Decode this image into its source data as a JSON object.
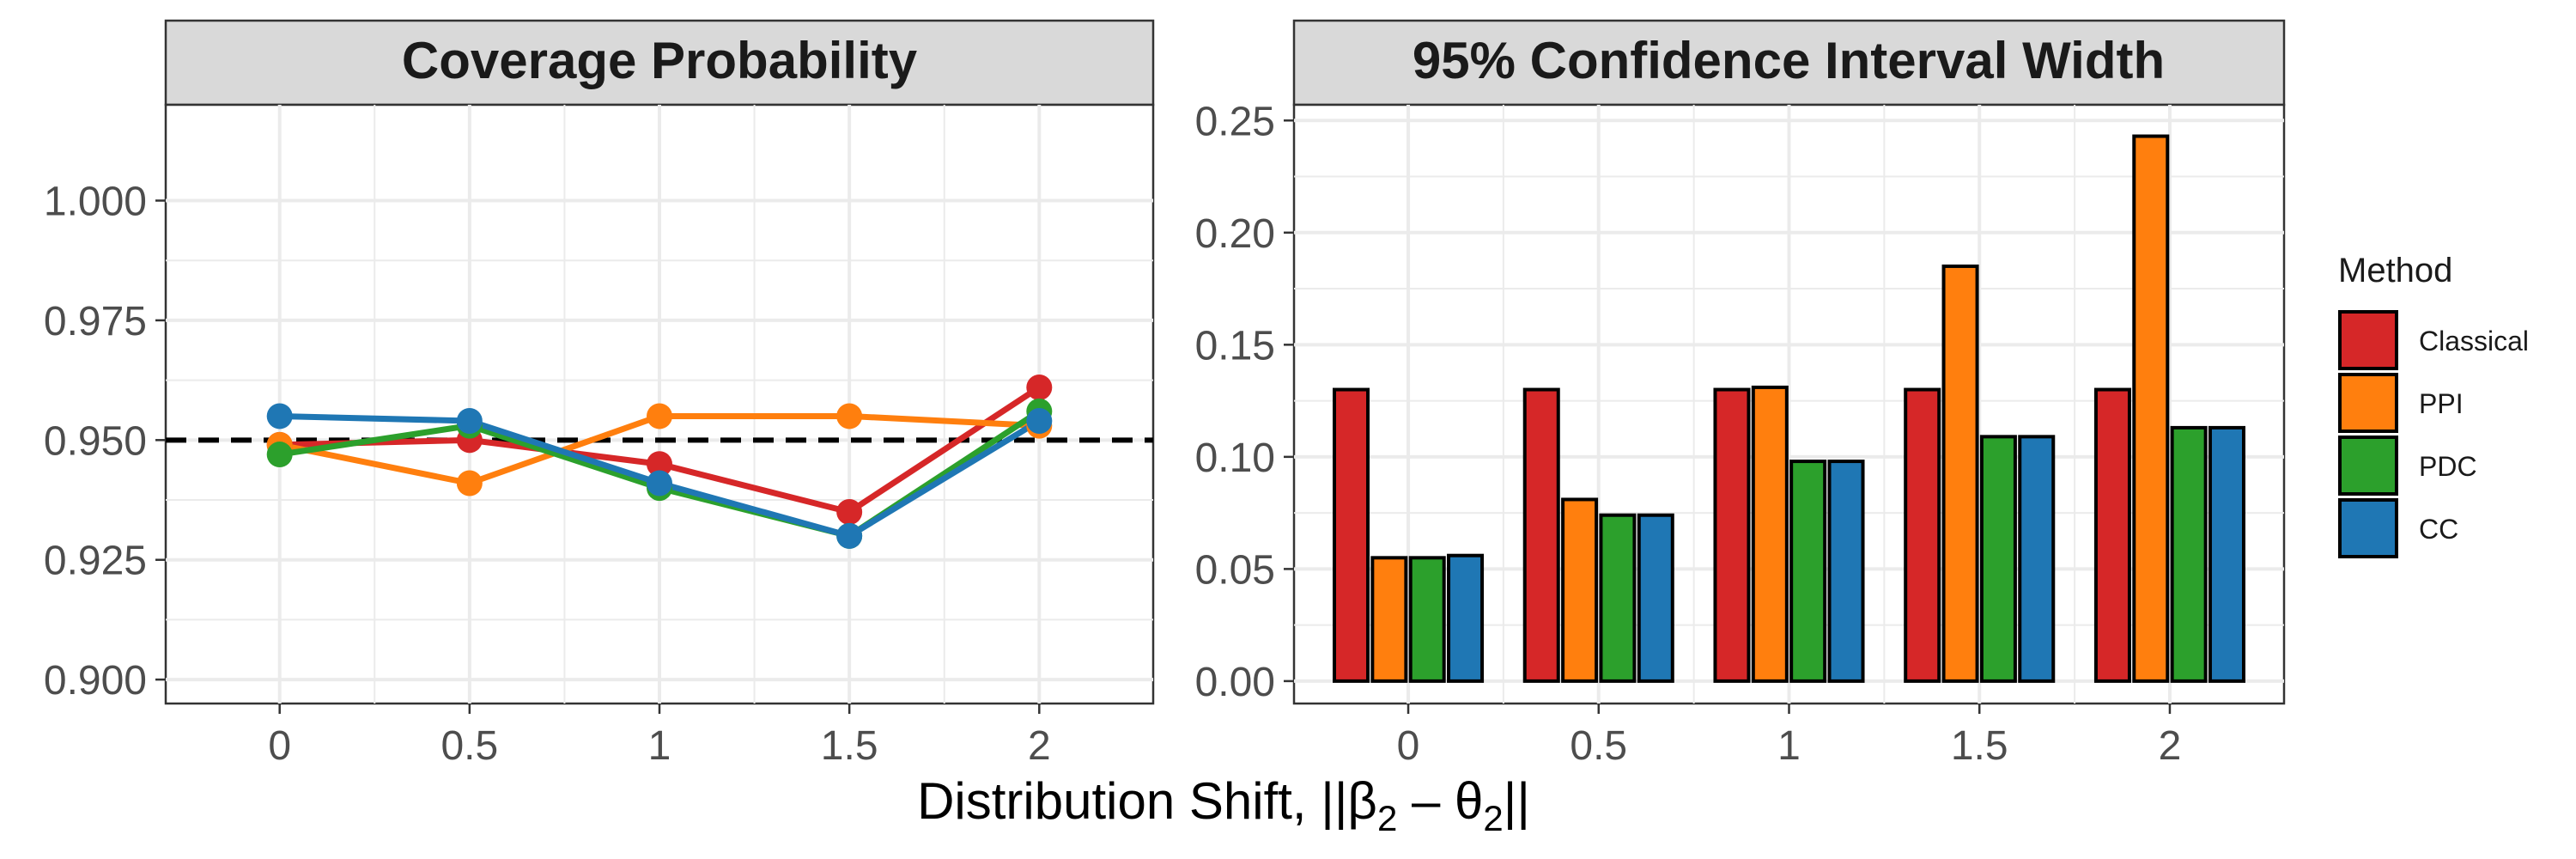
{
  "colors": {
    "Classical": "#D62728",
    "PPI": "#FF7F0E",
    "PDC": "#2CA02C",
    "CC": "#1F77B4",
    "strip_bg": "#D9D9D9",
    "grid": "#EBEBEB",
    "reference_line": "#000000"
  },
  "x_axis": {
    "label_main": "Distribution Shift, ||β",
    "label_sub1": "2",
    "label_mid": " – θ",
    "label_sub2": "2",
    "label_end": "||"
  },
  "chart_data": [
    {
      "type": "line",
      "title": "Coverage Probability",
      "x_categories": [
        "0",
        "0.5",
        "1",
        "1.5",
        "2"
      ],
      "ylim": [
        0.895,
        1.02
      ],
      "y_ticks": [
        0.9,
        0.925,
        0.95,
        0.975,
        1.0
      ],
      "y_tick_labels": [
        "0.900",
        "0.925",
        "0.950",
        "0.975",
        "1.000"
      ],
      "reference_line": {
        "y": 0.95,
        "style": "dashed"
      },
      "series": [
        {
          "name": "Classical",
          "values": [
            0.949,
            0.95,
            0.945,
            0.935,
            0.961
          ]
        },
        {
          "name": "PPI",
          "values": [
            0.949,
            0.941,
            0.955,
            0.955,
            0.953
          ]
        },
        {
          "name": "PDC",
          "values": [
            0.947,
            0.953,
            0.94,
            0.93,
            0.956
          ]
        },
        {
          "name": "CC",
          "values": [
            0.955,
            0.954,
            0.941,
            0.93,
            0.954
          ]
        }
      ]
    },
    {
      "type": "bar",
      "title": "95% Confidence Interval Width",
      "x_categories": [
        "0",
        "0.5",
        "1",
        "1.5",
        "2"
      ],
      "ylim": [
        -0.01,
        0.257
      ],
      "y_ticks": [
        0.0,
        0.05,
        0.1,
        0.15,
        0.2,
        0.25
      ],
      "y_tick_labels": [
        "0.00",
        "0.05",
        "0.10",
        "0.15",
        "0.20",
        "0.25"
      ],
      "series": [
        {
          "name": "Classical",
          "values": [
            0.13,
            0.13,
            0.13,
            0.13,
            0.13
          ]
        },
        {
          "name": "PPI",
          "values": [
            0.055,
            0.081,
            0.131,
            0.185,
            0.243
          ]
        },
        {
          "name": "PDC",
          "values": [
            0.055,
            0.074,
            0.098,
            0.109,
            0.113
          ]
        },
        {
          "name": "CC",
          "values": [
            0.056,
            0.074,
            0.098,
            0.109,
            0.113
          ]
        }
      ]
    }
  ],
  "legend": {
    "title": "Method",
    "items": [
      "Classical",
      "PPI",
      "PDC",
      "CC"
    ]
  }
}
